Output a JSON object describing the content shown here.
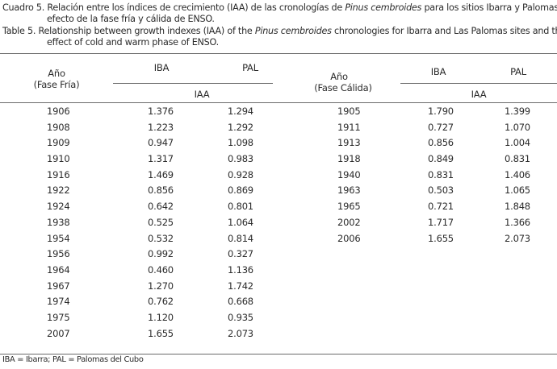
{
  "caption": {
    "es_line1_pre": "Cuadro 5. Relación entre los índices de crecimiento (IAA) de las cronologías de ",
    "es_line1_species": "Pinus cembroides",
    "es_line1_post": " para los sitios Ibarra y Palomas y el",
    "es_line2": "efecto de la fase fría y cálida de ENSO.",
    "en_line1_pre": "Table 5. Relationship between growth indexes (IAA) of the ",
    "en_line1_species": "Pinus cembroides",
    "en_line1_post": " chronologies for Ibarra and Las Palomas sites and the",
    "en_line2": "effect of cold and warm phase of ENSO."
  },
  "cold_phase": {
    "year_header_1": "Año",
    "year_header_2": "(Fase Fría)",
    "col_iba": "IBA",
    "col_pal": "PAL",
    "index_label": "IAA",
    "rows": [
      {
        "year": "1906",
        "iba": "1.376",
        "pal": "1.294"
      },
      {
        "year": "1908",
        "iba": "1.223",
        "pal": "1.292"
      },
      {
        "year": "1909",
        "iba": "0.947",
        "pal": "1.098"
      },
      {
        "year": "1910",
        "iba": "1.317",
        "pal": "0.983"
      },
      {
        "year": "1916",
        "iba": "1.469",
        "pal": "0.928"
      },
      {
        "year": "1922",
        "iba": "0.856",
        "pal": "0.869"
      },
      {
        "year": "1924",
        "iba": "0.642",
        "pal": "0.801"
      },
      {
        "year": "1938",
        "iba": "0.525",
        "pal": "1.064"
      },
      {
        "year": "1954",
        "iba": "0.532",
        "pal": "0.814"
      },
      {
        "year": "1956",
        "iba": "0.992",
        "pal": "0.327"
      },
      {
        "year": "1964",
        "iba": "0.460",
        "pal": "1.136"
      },
      {
        "year": "1967",
        "iba": "1.270",
        "pal": "1.742"
      },
      {
        "year": "1974",
        "iba": "0.762",
        "pal": "0.668"
      },
      {
        "year": "1975",
        "iba": "1.120",
        "pal": "0.935"
      },
      {
        "year": "2007",
        "iba": "1.655",
        "pal": "2.073"
      }
    ]
  },
  "warm_phase": {
    "year_header_1": "Año",
    "year_header_2": "(Fase Cálida)",
    "col_iba": "IBA",
    "col_pal": "PAL",
    "index_label": "IAA",
    "rows": [
      {
        "year": "1905",
        "iba": "1.790",
        "pal": "1.399"
      },
      {
        "year": "1911",
        "iba": "0.727",
        "pal": "1.070"
      },
      {
        "year": "1913",
        "iba": "0.856",
        "pal": "1.004"
      },
      {
        "year": "1918",
        "iba": "0.849",
        "pal": "0.831"
      },
      {
        "year": "1940",
        "iba": "0.831",
        "pal": "1.406"
      },
      {
        "year": "1963",
        "iba": "0.503",
        "pal": "1.065"
      },
      {
        "year": "1965",
        "iba": "0.721",
        "pal": "1.848"
      },
      {
        "year": "2002",
        "iba": "1.717",
        "pal": "1.366"
      },
      {
        "year": "2006",
        "iba": "1.655",
        "pal": "2.073"
      }
    ]
  },
  "footnote": "IBA = Ibarra; PAL = Palomas del Cubo"
}
